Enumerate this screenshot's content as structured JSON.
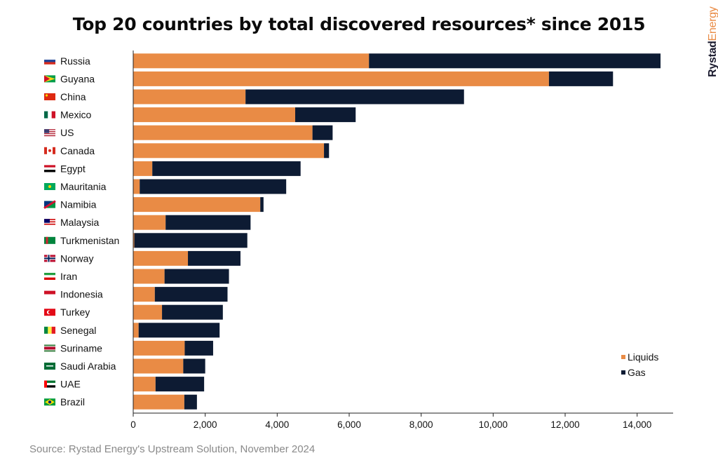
{
  "chart_data": {
    "type": "bar",
    "orientation": "horizontal",
    "stacked": true,
    "title": "Top 20 countries by total discovered resources* since 2015",
    "xlabel": "",
    "ylabel": "",
    "xlim": [
      0,
      15000
    ],
    "xticks": [
      0,
      2000,
      4000,
      6000,
      8000,
      10000,
      12000,
      14000
    ],
    "xtick_labels": [
      "0",
      "2,000",
      "4,000",
      "6,000",
      "8,000",
      "10,000",
      "12,000",
      "14,000"
    ],
    "grid": false,
    "legend_position": "bottom-right",
    "categories": [
      "Russia",
      "Guyana",
      "China",
      "Mexico",
      "US",
      "Canada",
      "Egypt",
      "Mauritania",
      "Namibia",
      "Malaysia",
      "Turkmenistan",
      "Norway",
      "Iran",
      "Indonesia",
      "Turkey",
      "Senegal",
      "Suriname",
      "Saudi Arabia",
      "UAE",
      "Brazil"
    ],
    "series": [
      {
        "name": "Liquids",
        "color": "#e98b45",
        "values": [
          6550,
          11550,
          3120,
          4500,
          4980,
          5300,
          530,
          180,
          3530,
          900,
          30,
          1520,
          870,
          600,
          800,
          150,
          1430,
          1390,
          620,
          1420
        ]
      },
      {
        "name": "Gas",
        "color": "#0d1b33",
        "values": [
          8100,
          1780,
          6070,
          1680,
          560,
          140,
          4120,
          4070,
          90,
          2360,
          3140,
          1460,
          1790,
          2020,
          1690,
          2250,
          790,
          610,
          1350,
          350
        ]
      }
    ]
  },
  "source": "Source: Rystad Energy's Upstream Solution, November 2024",
  "brand": {
    "part1": "Rystad",
    "part2": "Energy"
  },
  "flags": [
    {
      "country": "Russia",
      "icon": "russia-flag-icon",
      "colors": [
        "#ffffff",
        "#1c3f94",
        "#d52b1e"
      ]
    },
    {
      "country": "Guyana",
      "icon": "guyana-flag-icon",
      "colors": [
        "#009e49",
        "#fcd116",
        "#ce1126"
      ]
    },
    {
      "country": "China",
      "icon": "china-flag-icon",
      "colors": [
        "#de2910",
        "#ffde00"
      ]
    },
    {
      "country": "Mexico",
      "icon": "mexico-flag-icon",
      "colors": [
        "#006847",
        "#ffffff",
        "#ce1126"
      ]
    },
    {
      "country": "US",
      "icon": "us-flag-icon",
      "colors": [
        "#b22234",
        "#ffffff",
        "#3c3b6e"
      ]
    },
    {
      "country": "Canada",
      "icon": "canada-flag-icon",
      "colors": [
        "#d52b1e",
        "#ffffff",
        "#d52b1e"
      ]
    },
    {
      "country": "Egypt",
      "icon": "egypt-flag-icon",
      "colors": [
        "#ce1126",
        "#ffffff",
        "#000000"
      ]
    },
    {
      "country": "Mauritania",
      "icon": "mauritania-flag-icon",
      "colors": [
        "#00a95c",
        "#ffd700"
      ]
    },
    {
      "country": "Namibia",
      "icon": "namibia-flag-icon",
      "colors": [
        "#003580",
        "#d21034",
        "#009543"
      ]
    },
    {
      "country": "Malaysia",
      "icon": "malaysia-flag-icon",
      "colors": [
        "#cc0001",
        "#ffffff",
        "#010066"
      ]
    },
    {
      "country": "Turkmenistan",
      "icon": "turkmenistan-flag-icon",
      "colors": [
        "#00843d",
        "#d22630"
      ]
    },
    {
      "country": "Norway",
      "icon": "norway-flag-icon",
      "colors": [
        "#ba0c2f",
        "#ffffff",
        "#00205b"
      ]
    },
    {
      "country": "Iran",
      "icon": "iran-flag-icon",
      "colors": [
        "#239f40",
        "#ffffff",
        "#da0000"
      ]
    },
    {
      "country": "Indonesia",
      "icon": "indonesia-flag-icon",
      "colors": [
        "#ce1126",
        "#ffffff"
      ]
    },
    {
      "country": "Turkey",
      "icon": "turkey-flag-icon",
      "colors": [
        "#e30a17",
        "#ffffff"
      ]
    },
    {
      "country": "Senegal",
      "icon": "senegal-flag-icon",
      "colors": [
        "#00853f",
        "#fdef42",
        "#e31b23"
      ]
    },
    {
      "country": "Suriname",
      "icon": "suriname-flag-icon",
      "colors": [
        "#377e3f",
        "#ffffff",
        "#b40a2d"
      ]
    },
    {
      "country": "Saudi Arabia",
      "icon": "saudi-arabia-flag-icon",
      "colors": [
        "#006c35",
        "#ffffff"
      ]
    },
    {
      "country": "UAE",
      "icon": "uae-flag-icon",
      "colors": [
        "#ff0000",
        "#00732f",
        "#ffffff",
        "#000000"
      ]
    },
    {
      "country": "Brazil",
      "icon": "brazil-flag-icon",
      "colors": [
        "#009c3b",
        "#ffdf00",
        "#002776"
      ]
    }
  ]
}
